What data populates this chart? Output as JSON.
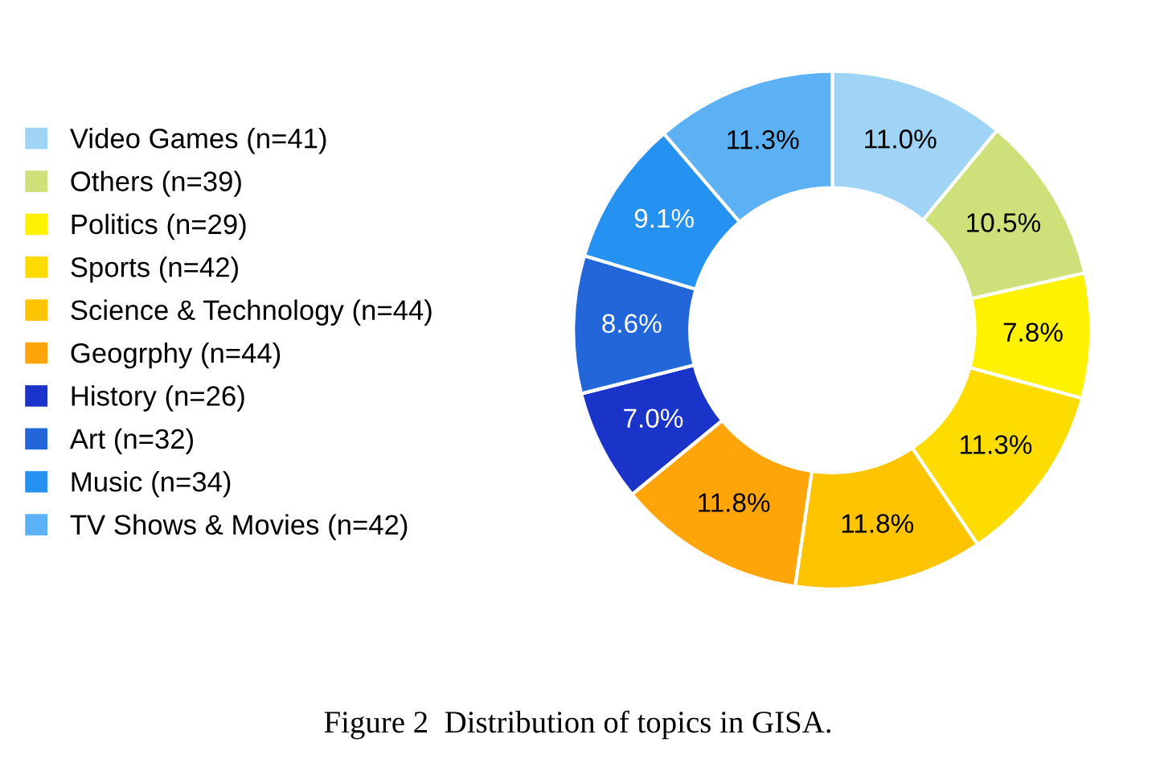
{
  "chart_data": {
    "type": "donut",
    "title": "Figure 2  Distribution of topics in GISA.",
    "legend": "left",
    "categories": [
      "Video Games (n=41)",
      "Others (n=39)",
      "Politics (n=29)",
      "Sports (n=42)",
      "Science & Technology (n=44)",
      "Geogrphy (n=44)",
      "History (n=26)",
      "Art (n=32)",
      "Music (n=34)",
      "TV Shows & Movies (n=42)"
    ],
    "values": [
      11.0,
      10.5,
      7.8,
      11.3,
      11.8,
      11.8,
      7.0,
      8.6,
      9.1,
      11.3
    ],
    "value_labels": [
      "11.0%",
      "10.5%",
      "7.8%",
      "11.3%",
      "11.8%",
      "11.8%",
      "7.0%",
      "8.6%",
      "9.1%",
      "11.3%"
    ],
    "colors": [
      "#a0d4f6",
      "#cde07a",
      "#fff200",
      "#ffdc00",
      "#ffc400",
      "#ffa50a",
      "#1a33c8",
      "#2266da",
      "#2591f0",
      "#5cb1f5"
    ]
  }
}
